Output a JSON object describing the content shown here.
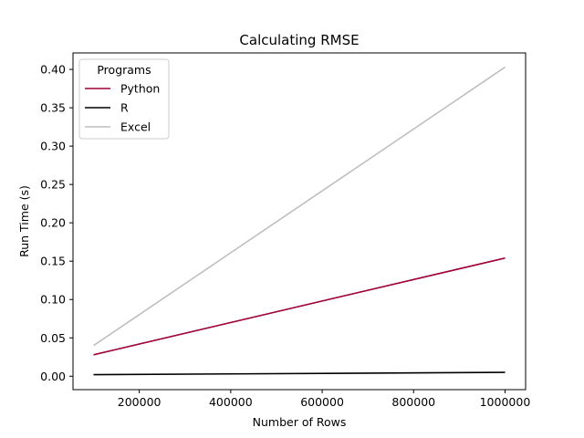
{
  "chart_data": {
    "type": "line",
    "title": "Calculating RMSE",
    "xlabel": "Number of Rows",
    "ylabel": "Run Time (s)",
    "xlim": [
      55000,
      1045000
    ],
    "ylim": [
      -0.0175,
      0.4215
    ],
    "grid": false,
    "x_ticks": [
      200000,
      400000,
      600000,
      800000,
      1000000
    ],
    "x_tick_labels": [
      "200000",
      "400000",
      "600000",
      "800000",
      "1000000"
    ],
    "y_ticks": [
      0.0,
      0.05,
      0.1,
      0.15,
      0.2,
      0.25,
      0.3,
      0.35,
      0.4
    ],
    "y_tick_labels": [
      "0.00",
      "0.05",
      "0.10",
      "0.15",
      "0.20",
      "0.25",
      "0.30",
      "0.35",
      "0.40"
    ],
    "legend": {
      "title": "Programs",
      "placement": "top-left"
    },
    "x": [
      100000,
      1000000
    ],
    "series": [
      {
        "name": "Python",
        "color": "#9e0038",
        "values": [
          0.028,
          0.154
        ]
      },
      {
        "name": "R",
        "color": "#000000",
        "values": [
          0.002,
          0.005
        ]
      },
      {
        "name": "Excel",
        "color": "#bfbfbf",
        "values": [
          0.04,
          0.403
        ]
      }
    ]
  }
}
